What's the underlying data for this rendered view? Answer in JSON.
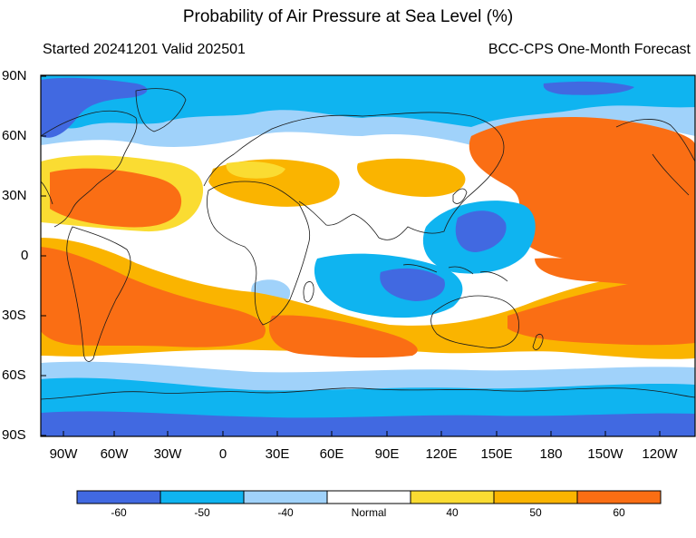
{
  "header": {
    "title": "Probability of Air Pressure at Sea Level (%)",
    "subtitle_left": "Started 20241201  Valid 202501",
    "subtitle_right": "BCC-CPS One-Month Forecast"
  },
  "axes": {
    "lat_labels": [
      "90N",
      "60N",
      "30N",
      "0",
      "30S",
      "60S",
      "90S"
    ],
    "lon_labels": [
      "90W",
      "60W",
      "30W",
      "0",
      "30E",
      "60E",
      "90E",
      "120E",
      "150E",
      "180",
      "150W",
      "120W"
    ]
  },
  "colors": {
    "below_60": "#4169e1",
    "below_50": "#0fb4f0",
    "below_40": "#a0d2fa",
    "normal": "#ffffff",
    "above_40": "#fadc32",
    "above_50": "#fab400",
    "above_60": "#fa6e14",
    "coast": "#1a1a1a"
  },
  "colorbar": {
    "labels": [
      "-60",
      "-50",
      "-40",
      "Normal",
      "40",
      "50",
      "60"
    ]
  }
}
